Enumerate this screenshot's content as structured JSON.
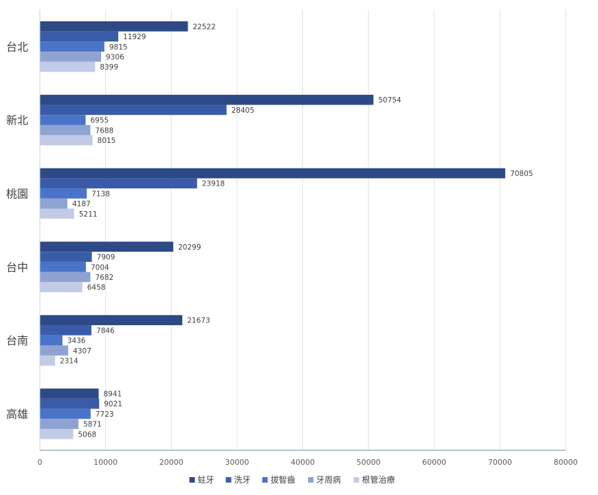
{
  "chart_data": {
    "type": "bar",
    "orientation": "horizontal",
    "title": "",
    "xlabel": "",
    "ylabel": "",
    "xlim": [
      0,
      80000
    ],
    "x_ticks": [
      "0",
      "10000",
      "20000",
      "30000",
      "40000",
      "50000",
      "60000",
      "70000",
      "80000"
    ],
    "grid": true,
    "legend_position": "bottom",
    "categories": [
      "台北",
      "新北",
      "桃園",
      "台中",
      "台南",
      "高雄"
    ],
    "series": [
      {
        "name": "蛀牙",
        "color": "#2e4a86",
        "values": [
          22522,
          50754,
          70805,
          20299,
          21673,
          8941
        ]
      },
      {
        "name": "洗牙",
        "color": "#3a5ca8",
        "values": [
          11929,
          28405,
          23918,
          7909,
          7846,
          9021
        ]
      },
      {
        "name": "拔智齒",
        "color": "#4a74c9",
        "values": [
          9815,
          6955,
          7138,
          7004,
          3436,
          7723
        ]
      },
      {
        "name": "牙周病",
        "color": "#8fa3d3",
        "values": [
          9306,
          7688,
          4187,
          7682,
          4307,
          5871
        ]
      },
      {
        "name": "根管治療",
        "color": "#c2cbe6",
        "values": [
          8399,
          8015,
          5211,
          6458,
          2314,
          5068
        ]
      }
    ]
  }
}
